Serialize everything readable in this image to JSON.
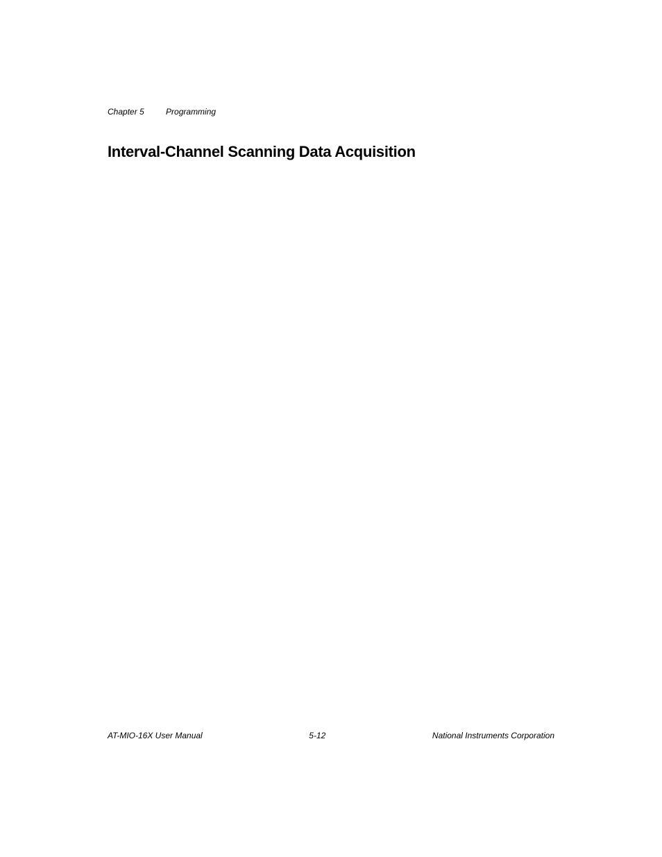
{
  "header": {
    "chapter_label": "Chapter 5",
    "chapter_title": "Programming"
  },
  "content": {
    "main_heading": "Interval-Channel Scanning Data Acquisition"
  },
  "footer": {
    "manual_name": "AT-MIO-16X User Manual",
    "page_number": "5-12",
    "company": "National Instruments Corporation"
  }
}
